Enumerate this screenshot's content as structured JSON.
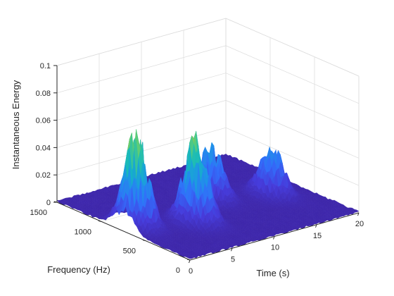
{
  "chart_data": {
    "type": "surface",
    "xlabel": "Time (s)",
    "ylabel": "Frequency (Hz)",
    "zlabel": "Instantaneous Energy",
    "xlim": [
      0,
      20
    ],
    "ylim": [
      0,
      1500
    ],
    "zlim": [
      0,
      0.1
    ],
    "x_ticks": [
      "0",
      "5",
      "10",
      "15",
      "20"
    ],
    "y_ticks": [
      "0",
      "500",
      "1000",
      "1500"
    ],
    "z_ticks": [
      "0",
      "0.02",
      "0.04",
      "0.06",
      "0.08",
      "0.1"
    ],
    "grid": true,
    "colormap": "parula",
    "colors": {
      "low": "#3e26a8",
      "mid": "#2c8cf0",
      "high": "#f9fb0e"
    },
    "peaks": [
      {
        "time_center": 1.5,
        "time_halfwidth": 1.4,
        "freq_center": 750,
        "freq_halfwidth": 180,
        "energy": 0.075
      },
      {
        "time_center": 6.5,
        "time_halfwidth": 1.4,
        "freq_center": 550,
        "freq_halfwidth": 180,
        "energy": 0.07
      },
      {
        "time_center": 11.5,
        "time_halfwidth": 1.4,
        "freq_center": 850,
        "freq_halfwidth": 180,
        "energy": 0.045
      },
      {
        "time_center": 16.5,
        "time_halfwidth": 1.4,
        "freq_center": 650,
        "freq_halfwidth": 180,
        "energy": 0.04
      }
    ]
  }
}
